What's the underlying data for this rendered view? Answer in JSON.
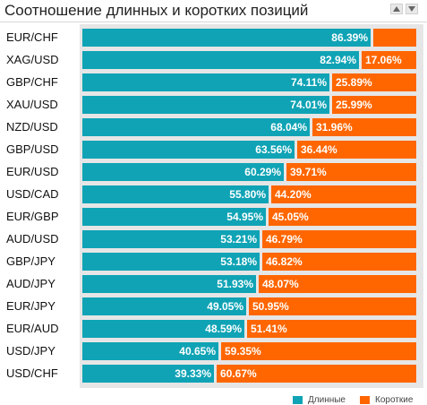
{
  "header": {
    "title": "Соотношение длинных и коротких позиций"
  },
  "colors": {
    "long": "#0fa3b5",
    "short": "#ff6600"
  },
  "chart_data": {
    "type": "bar",
    "orientation": "horizontal",
    "stacked": true,
    "categories": [
      "EUR/CHF",
      "XAG/USD",
      "GBP/CHF",
      "XAU/USD",
      "NZD/USD",
      "GBP/USD",
      "EUR/USD",
      "USD/CAD",
      "EUR/GBP",
      "AUD/USD",
      "GBP/JPY",
      "AUD/JPY",
      "EUR/JPY",
      "EUR/AUD",
      "USD/JPY",
      "USD/CHF"
    ],
    "series": [
      {
        "name": "Длинные",
        "values": [
          86.39,
          82.94,
          74.11,
          74.01,
          68.04,
          63.56,
          60.29,
          55.8,
          54.95,
          53.21,
          53.18,
          51.93,
          49.05,
          48.59,
          40.65,
          39.33
        ],
        "labels": [
          "86.39%",
          "82.94%",
          "74.11%",
          "74.01%",
          "68.04%",
          "63.56%",
          "60.29%",
          "55.80%",
          "54.95%",
          "53.21%",
          "53.18%",
          "51.93%",
          "49.05%",
          "48.59%",
          "40.65%",
          "39.33%"
        ]
      },
      {
        "name": "Короткие",
        "values": [
          13.61,
          17.06,
          25.89,
          25.99,
          31.96,
          36.44,
          39.71,
          44.2,
          45.05,
          46.79,
          46.82,
          48.07,
          50.95,
          51.41,
          59.35,
          60.67
        ],
        "labels": [
          "",
          "17.06%",
          "25.89%",
          "25.99%",
          "31.96%",
          "36.44%",
          "39.71%",
          "44.20%",
          "45.05%",
          "46.79%",
          "46.82%",
          "48.07%",
          "50.95%",
          "51.41%",
          "59.35%",
          "60.67%"
        ]
      }
    ],
    "xlim": [
      0,
      100
    ],
    "legend": "bottom-right",
    "grid": false
  }
}
